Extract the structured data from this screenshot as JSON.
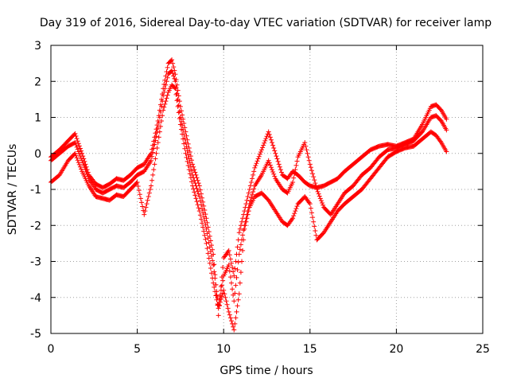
{
  "chart_data": {
    "type": "scatter",
    "title": "Day 319 of 2016, Sidereal Day-to-day VTEC variation (SDTVAR) for receiver lamp",
    "xlabel": "GPS time / hours",
    "ylabel": "SDTVAR / TECUs",
    "xlim": [
      0,
      25
    ],
    "ylim": [
      -5,
      3
    ],
    "x_ticks": [
      "0",
      "5",
      "10",
      "15",
      "20",
      "25"
    ],
    "y_ticks": [
      "3",
      "2",
      "1",
      "0",
      "-1",
      "-2",
      "-3",
      "-4",
      "-5"
    ],
    "grid": true,
    "marker": "+",
    "color": "#ff0000",
    "series": [
      {
        "x": [
          0.0,
          0.5,
          1.0,
          1.4,
          1.8,
          2.2,
          2.6,
          3.0,
          3.4,
          3.8,
          4.2,
          4.6,
          5.0,
          5.4,
          5.8,
          6.2,
          6.5,
          6.8,
          7.0,
          7.2,
          7.5,
          7.8,
          8.2,
          8.6,
          9.0,
          9.4,
          9.7,
          10.0,
          10.3,
          10.6,
          10.9,
          11.2,
          11.5,
          11.8,
          12.2,
          12.6,
          13.0,
          13.4,
          13.7,
          14.0,
          14.3,
          14.7,
          15.0,
          15.4,
          15.8,
          16.2,
          16.6,
          17.0,
          17.5,
          18.0,
          18.5,
          19.0,
          19.5,
          20.0,
          20.5,
          21.0,
          21.5,
          22.0,
          22.3,
          22.6,
          22.9
        ],
        "y": [
          -0.1,
          0.1,
          0.35,
          0.55,
          0.0,
          -0.6,
          -0.85,
          -0.95,
          -0.85,
          -0.7,
          -0.75,
          -0.6,
          -0.4,
          -0.3,
          0.0,
          0.9,
          1.8,
          2.5,
          2.6,
          2.2,
          1.3,
          0.6,
          -0.3,
          -0.9,
          -1.8,
          -2.8,
          -4.5,
          -2.9,
          -2.7,
          -3.4,
          -2.2,
          -1.6,
          -1.0,
          -0.4,
          0.1,
          0.6,
          0.0,
          -0.6,
          -0.7,
          -0.5,
          -0.6,
          -0.8,
          -0.9,
          -0.95,
          -0.9,
          -0.8,
          -0.7,
          -0.5,
          -0.3,
          -0.1,
          0.1,
          0.2,
          0.25,
          0.2,
          0.3,
          0.4,
          0.8,
          1.3,
          1.35,
          1.2,
          0.95
        ]
      },
      {
        "x": [
          0.0,
          0.5,
          1.0,
          1.4,
          1.8,
          2.2,
          2.6,
          3.0,
          3.4,
          3.8,
          4.2,
          4.6,
          5.0,
          5.4,
          5.8,
          6.2,
          6.5,
          6.8,
          7.0,
          7.2,
          7.5,
          7.8,
          8.2,
          8.6,
          9.0,
          9.4,
          9.7,
          10.0,
          10.3,
          10.6,
          10.9,
          11.2,
          11.5,
          11.8,
          12.2,
          12.6,
          13.0,
          13.4,
          13.7,
          14.0,
          14.3,
          14.7,
          15.0,
          15.4,
          15.8,
          16.2,
          16.6,
          17.0,
          17.5,
          18.0,
          18.5,
          19.0,
          19.5,
          20.0,
          20.5,
          21.0,
          21.5,
          22.0,
          22.3,
          22.6,
          22.9
        ],
        "y": [
          -0.2,
          0.0,
          0.2,
          0.3,
          -0.2,
          -0.7,
          -1.0,
          -1.1,
          -1.0,
          -0.9,
          -0.95,
          -0.8,
          -0.6,
          -0.5,
          -0.2,
          0.7,
          1.6,
          2.2,
          2.3,
          2.0,
          1.0,
          0.3,
          -0.6,
          -1.2,
          -2.1,
          -3.1,
          -4.2,
          -3.4,
          -3.1,
          -4.1,
          -2.8,
          -2.0,
          -1.4,
          -0.9,
          -0.6,
          -0.2,
          -0.7,
          -1.0,
          -1.1,
          -0.8,
          -0.1,
          0.3,
          -0.3,
          -1.0,
          -1.5,
          -1.7,
          -1.4,
          -1.1,
          -0.9,
          -0.6,
          -0.4,
          -0.1,
          0.1,
          0.15,
          0.25,
          0.35,
          0.6,
          1.0,
          1.05,
          0.9,
          0.65
        ]
      },
      {
        "x": [
          0.0,
          0.5,
          1.0,
          1.4,
          1.8,
          2.2,
          2.6,
          3.0,
          3.4,
          3.8,
          4.2,
          4.6,
          5.0,
          5.4,
          5.8,
          6.2,
          6.5,
          6.8,
          7.0,
          7.2,
          7.5,
          7.8,
          8.2,
          8.6,
          9.0,
          9.4,
          9.7,
          10.0,
          10.3,
          10.6,
          10.9,
          11.2,
          11.5,
          11.8,
          12.2,
          12.6,
          13.0,
          13.4,
          13.7,
          14.0,
          14.3,
          14.7,
          15.0,
          15.4,
          15.8,
          16.2,
          16.6,
          17.0,
          17.5,
          18.0,
          18.5,
          19.0,
          19.5,
          20.0,
          20.5,
          21.0,
          21.5,
          22.0,
          22.3,
          22.6,
          22.9
        ],
        "y": [
          -0.8,
          -0.6,
          -0.2,
          0.0,
          -0.5,
          -0.9,
          -1.2,
          -1.25,
          -1.3,
          -1.15,
          -1.2,
          -1.0,
          -0.8,
          -1.7,
          -0.9,
          0.3,
          1.2,
          1.7,
          1.9,
          1.8,
          0.8,
          0.0,
          -0.9,
          -1.6,
          -2.5,
          -3.6,
          -4.3,
          -3.8,
          -4.4,
          -4.9,
          -3.9,
          -2.1,
          -1.5,
          -1.2,
          -1.1,
          -1.3,
          -1.6,
          -1.9,
          -2.0,
          -1.8,
          -1.4,
          -1.2,
          -1.4,
          -2.4,
          -2.2,
          -1.9,
          -1.6,
          -1.4,
          -1.2,
          -1.0,
          -0.7,
          -0.4,
          -0.1,
          0.05,
          0.15,
          0.2,
          0.4,
          0.6,
          0.5,
          0.3,
          0.05
        ]
      }
    ]
  }
}
